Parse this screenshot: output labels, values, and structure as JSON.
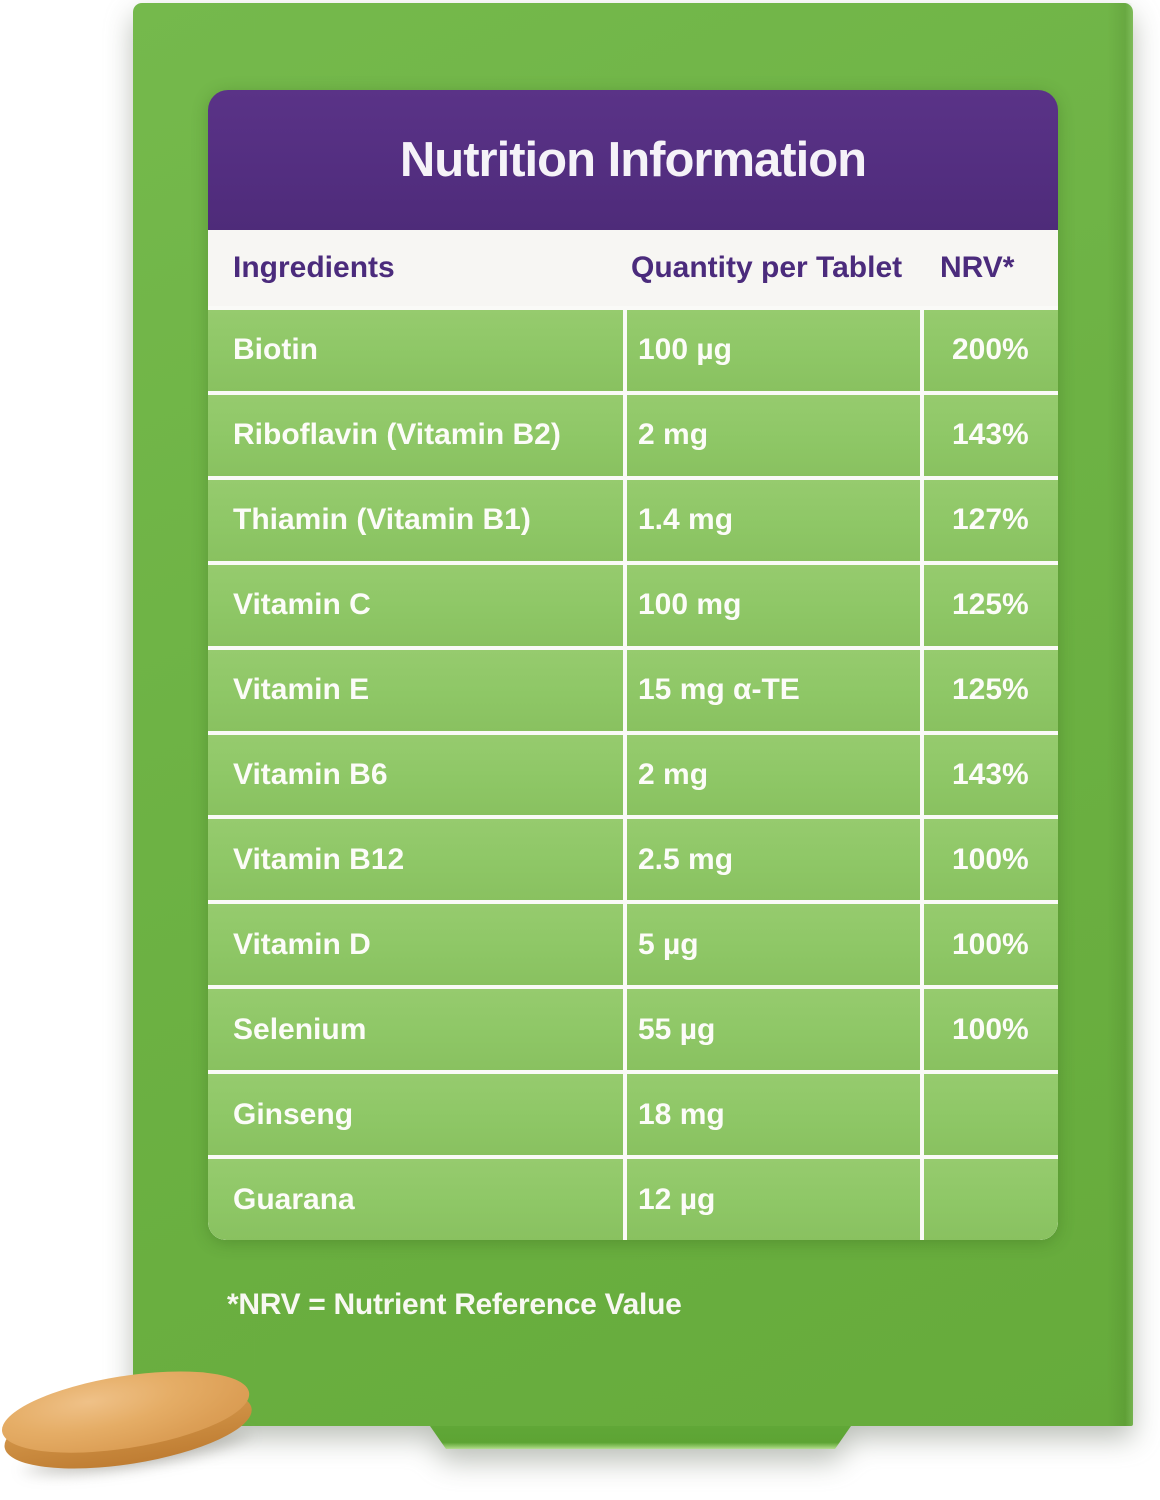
{
  "title": "Nutrition Information",
  "table": {
    "header": {
      "ingredients": "Ingredients",
      "quantity": "Quantity per Tablet",
      "nrv": "NRV*"
    },
    "rows": [
      {
        "ingredient": "Biotin",
        "quantity": "100 µg",
        "nrv": "200%"
      },
      {
        "ingredient": "Riboflavin (Vitamin B2)",
        "quantity": "2 mg",
        "nrv": "143%"
      },
      {
        "ingredient": "Thiamin (Vitamin B1)",
        "quantity": "1.4 mg",
        "nrv": "127%"
      },
      {
        "ingredient": "Vitamin C",
        "quantity": "100 mg",
        "nrv": "125%"
      },
      {
        "ingredient": "Vitamin E",
        "quantity": "15 mg α-TE",
        "nrv": "125%"
      },
      {
        "ingredient": "Vitamin B6",
        "quantity": "2 mg",
        "nrv": "143%"
      },
      {
        "ingredient": "Vitamin B12",
        "quantity": "2.5 mg",
        "nrv": "100%"
      },
      {
        "ingredient": "Vitamin D",
        "quantity": "5 µg",
        "nrv": "100%"
      },
      {
        "ingredient": "Selenium",
        "quantity": "55 µg",
        "nrv": "100%"
      },
      {
        "ingredient": "Ginseng",
        "quantity": "18 mg",
        "nrv": ""
      },
      {
        "ingredient": "Guarana",
        "quantity": "12 µg",
        "nrv": ""
      }
    ]
  },
  "footnote": "*NRV = Nutrient Reference Value",
  "colors": {
    "package_green": "#6db244",
    "row_green": "#8ec766",
    "header_purple": "#532e80",
    "header_text_purple": "#4b2b7c",
    "table_text": "#fcfcf8",
    "tablet_tan": "#dc9f56"
  }
}
